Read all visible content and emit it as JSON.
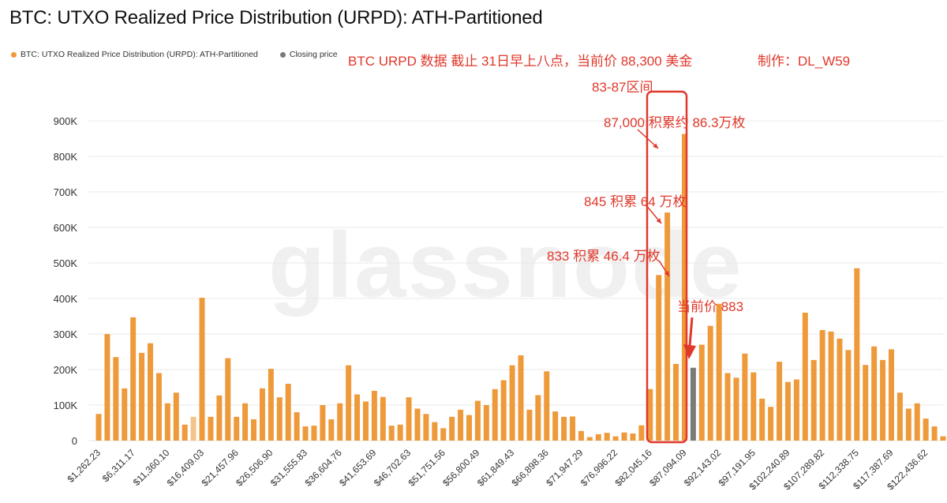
{
  "title": "BTC: UTXO Realized Price Distribution (URPD): ATH-Partitioned",
  "legend": {
    "series_label": "BTC: UTXO Realized Price Distribution (URPD): ATH-Partitioned",
    "closing_label": "Closing price"
  },
  "watermark": "glassnode",
  "annotations": {
    "header": "BTC URPD 数据 截止 31日早上八点，当前价 88,300 美金",
    "author": "制作：DL_W59",
    "range": "83-87区间",
    "a87": "87,000 积累约 86.3万枚",
    "a845": "845 积累 64 万枚",
    "a833": "833 积累 46.4 万枚",
    "current": "当前价 883"
  },
  "colors": {
    "bar": "#ee9a3a",
    "bar_ath_light": "#f2c48a",
    "closing": "#7a7a7a",
    "annotation": "#e0382b",
    "grid": "#e8e8e8",
    "axis_text": "#333333"
  },
  "chart_data": {
    "type": "bar",
    "title": "BTC: UTXO Realized Price Distribution (URPD): ATH-Partitioned",
    "xlabel": "",
    "ylabel": "",
    "ylim": [
      0,
      900000
    ],
    "yticks": [
      0,
      100000,
      200000,
      300000,
      400000,
      500000,
      600000,
      700000,
      800000,
      900000
    ],
    "ytick_labels": [
      "0",
      "100K",
      "200K",
      "300K",
      "400K",
      "500K",
      "600K",
      "700K",
      "800K",
      "900K"
    ],
    "xtick_labels": [
      "$1,262.23",
      "$6,311.17",
      "$11,360.10",
      "$16,409.03",
      "$21,457.96",
      "$26,506.90",
      "$31,555.83",
      "$36,604.76",
      "$41,653.69",
      "$46,702.63",
      "$51,751.56",
      "$56,800.49",
      "$61,849.43",
      "$66,898.36",
      "$71,947.29",
      "$76,996.22",
      "$82,045.16",
      "$87,094.09",
      "$92,143.02",
      "$97,191.95",
      "$102,240.89",
      "$107,289.82",
      "$112,338.75",
      "$117,387.69",
      "$122,436.62"
    ],
    "grid": true,
    "values": [
      75000,
      300000,
      235000,
      147000,
      347000,
      247000,
      274000,
      190000,
      105000,
      135000,
      45000,
      67000,
      402000,
      67000,
      127000,
      232000,
      67000,
      105000,
      60000,
      147000,
      202000,
      122000,
      160000,
      80000,
      40000,
      42000,
      100000,
      60000,
      105000,
      212000,
      130000,
      110000,
      140000,
      123000,
      42000,
      45000,
      122000,
      90000,
      75000,
      52000,
      35000,
      67000,
      87000,
      72000,
      112000,
      100000,
      145000,
      170000,
      212000,
      240000,
      87000,
      128000,
      195000,
      82000,
      67000,
      68000,
      27000,
      10000,
      18000,
      22000,
      12000,
      23000,
      20000,
      43000,
      145000,
      466000,
      642000,
      216000,
      863000,
      205000,
      270000,
      323000,
      385000,
      190000,
      177000,
      245000,
      192000,
      118000,
      95000,
      222000,
      165000,
      172000,
      360000,
      227000,
      311000,
      307000,
      287000,
      255000,
      485000,
      213000,
      265000,
      227000,
      257000,
      135000,
      90000,
      105000,
      62000,
      40000,
      12000
    ],
    "light_bar_indices": [
      11
    ],
    "closing_price_index": 69,
    "series": [
      {
        "name": "BTC: UTXO Realized Price Distribution (URPD): ATH-Partitioned",
        "color": "#ee9a3a"
      },
      {
        "name": "Closing price",
        "color": "#7a7a7a"
      }
    ]
  }
}
